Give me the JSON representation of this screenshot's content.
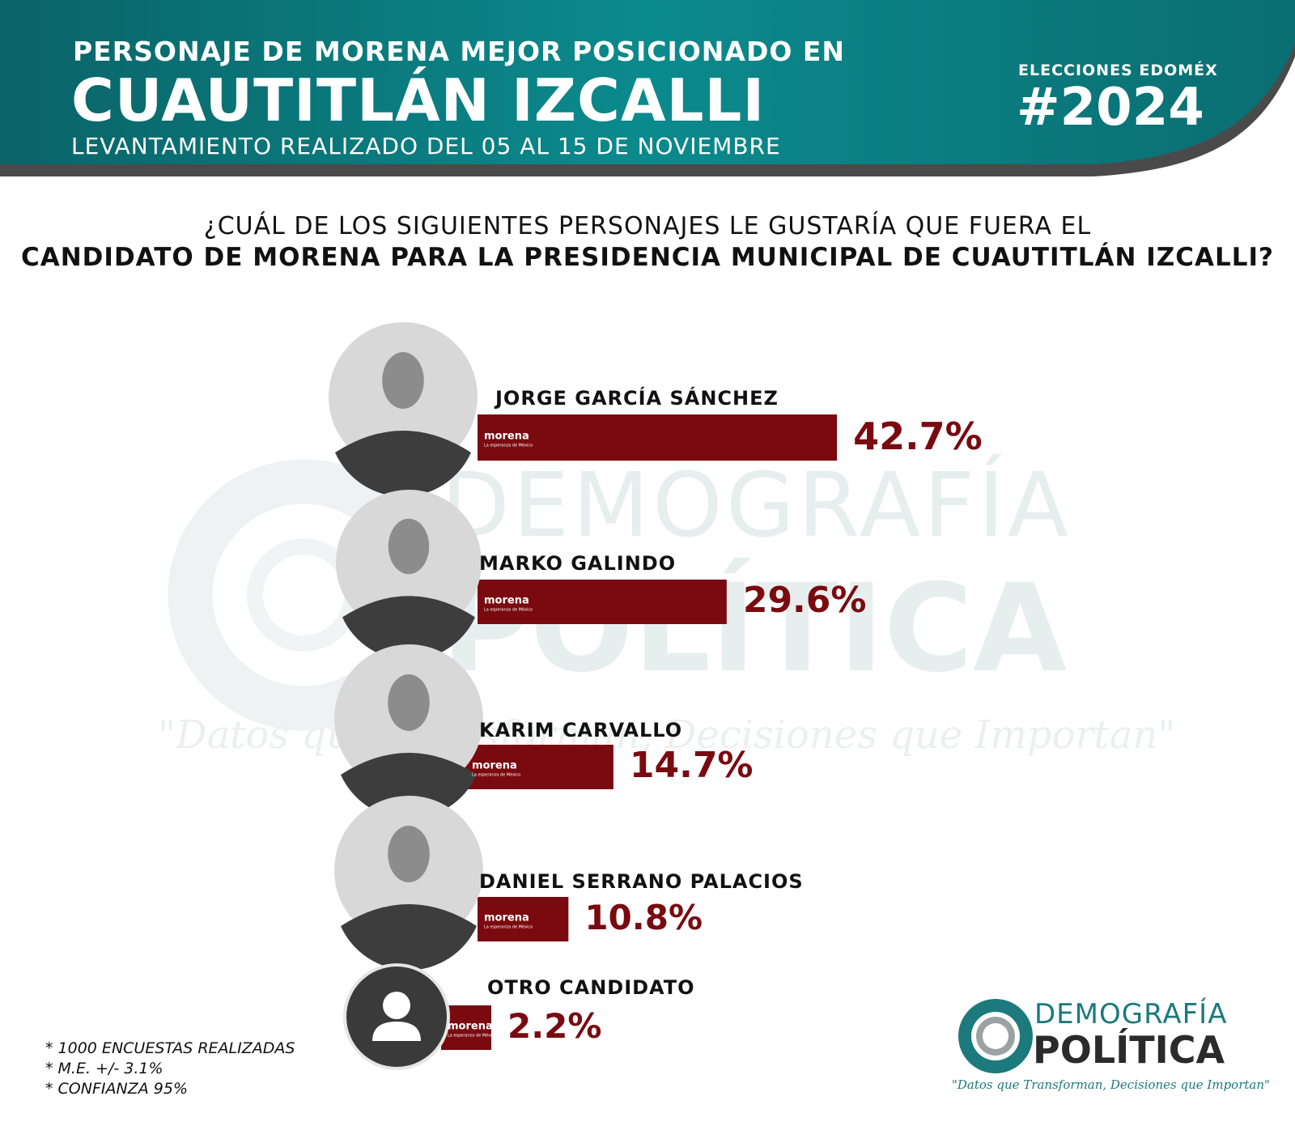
{
  "header": {
    "line1": "PERSONAJE DE MORENA MEJOR POSICIONADO EN",
    "line2": "CUAUTITLÁN IZCALLI",
    "line3": "LEVANTAMIENTO REALIZADO DEL 05 AL 15 DE NOVIEMBRE",
    "tag_small": "ELECCIONES EDOMÉX",
    "tag_big": "#2024"
  },
  "question": {
    "line1": "¿CUÁL DE LOS SIGUIENTES PERSONAJES LE GUSTARÍA QUE FUERA EL",
    "line2": "CANDIDATO DE MORENA PARA LA PRESIDENCIA MUNICIPAL DE CUAUTITLÁN IZCALLI?"
  },
  "watermark": {
    "line1": "DEMOGRAFÍA",
    "line2": "POLÍTICA",
    "slogan": "\"Datos que Transforman, Decisiones que Importan\""
  },
  "chart_data": {
    "type": "bar",
    "orientation": "horizontal",
    "categories": [
      "JORGE GARCÍA SÁNCHEZ",
      "MARKO GALINDO",
      "KARIM CARVALLO",
      "DANIEL SERRANO PALACIOS",
      "OTRO CANDIDATO"
    ],
    "values": [
      42.7,
      29.6,
      14.7,
      10.8,
      2.2
    ],
    "value_labels": [
      "42.7%",
      "29.6%",
      "14.7%",
      "10.8%",
      "2.2%"
    ],
    "bar_label": "morena",
    "bar_sublabel": "La esperanza de México",
    "unit": "%"
  },
  "colors": {
    "header_teal": "#0b7f82",
    "header_teal_dark": "#0a6468",
    "header_gray": "#4a4a4a",
    "bar": "#7a0a10",
    "logo_teal": "#1c7a7c"
  },
  "notes": [
    "* 1000 ENCUESTAS REALIZADAS",
    "* M.E. +/- 3.1%",
    "* CONFIANZA 95%"
  ],
  "logo": {
    "word1": "DEMOGRAFÍA",
    "word2": "POLÍTICA",
    "slogan": "\"Datos que Transforman, Decisiones que Importan\""
  }
}
